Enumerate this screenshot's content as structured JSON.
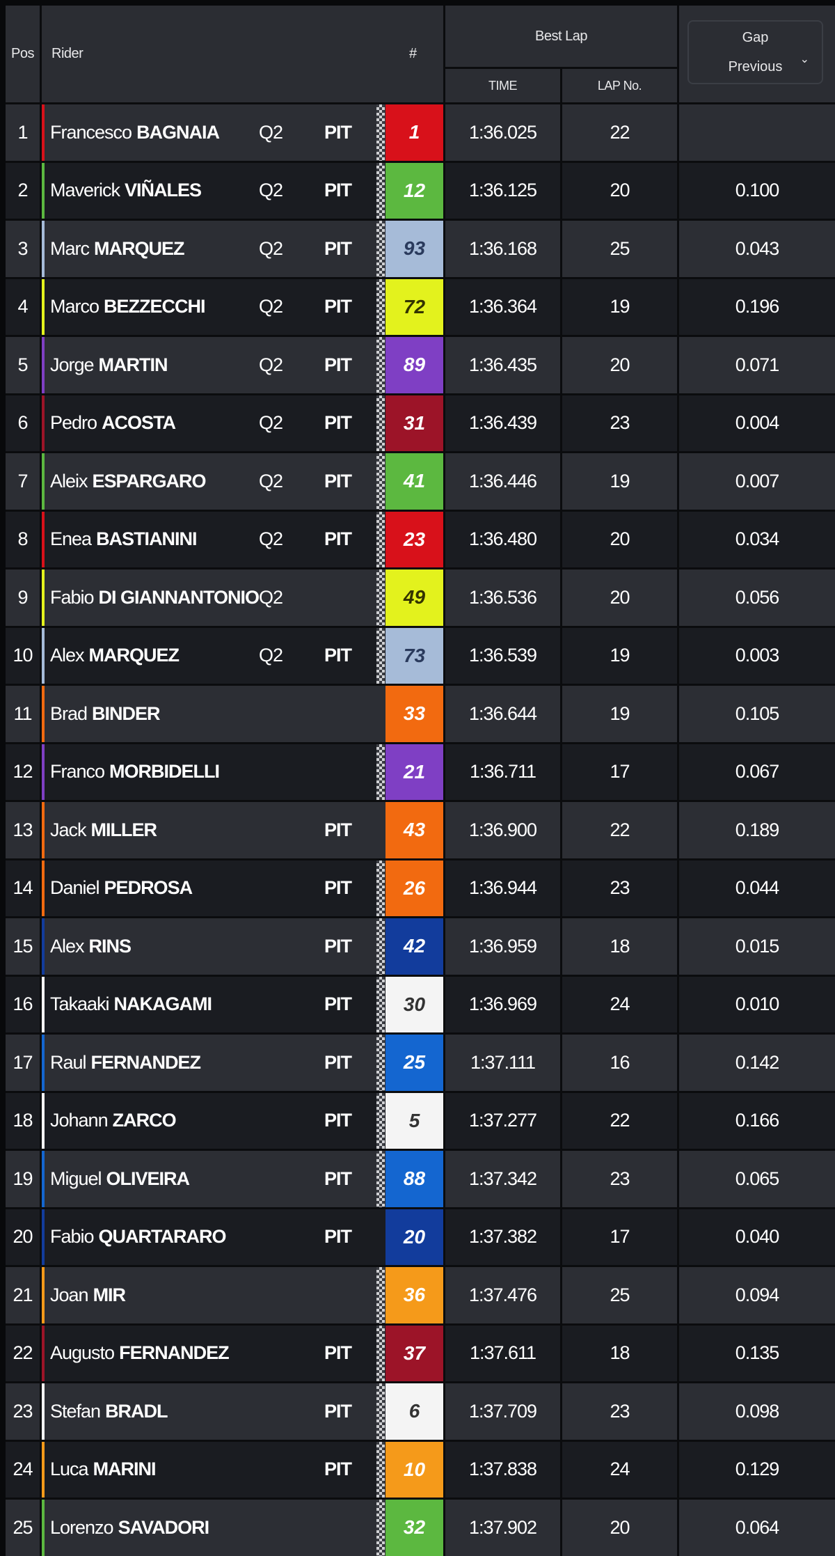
{
  "header": {
    "pos": "Pos",
    "rider": "Rider",
    "number": "#",
    "best_lap": "Best Lap",
    "time": "TIME",
    "lap_no": "LAP No.",
    "gap_selector": {
      "line1": "Gap",
      "line2": "Previous",
      "icon": "chevron-down-icon"
    }
  },
  "rows": [
    {
      "pos": "1",
      "first": "Francesco",
      "last": "BAGNAIA",
      "q": "Q2",
      "pit": "PIT",
      "checker": true,
      "num": "1",
      "color": "#d8111a",
      "text": "#ffffff",
      "time": "1:36.025",
      "lap": "22",
      "gap": ""
    },
    {
      "pos": "2",
      "first": "Maverick",
      "last": "VIÑALES",
      "q": "Q2",
      "pit": "PIT",
      "checker": true,
      "num": "12",
      "color": "#5cb840",
      "text": "#ffffff",
      "time": "1:36.125",
      "lap": "20",
      "gap": "0.100"
    },
    {
      "pos": "3",
      "first": "Marc",
      "last": "MARQUEZ",
      "q": "Q2",
      "pit": "PIT",
      "checker": true,
      "num": "93",
      "color": "#a6bbd8",
      "text": "#2a3a5c",
      "time": "1:36.168",
      "lap": "25",
      "gap": "0.043"
    },
    {
      "pos": "4",
      "first": "Marco",
      "last": "BEZZECCHI",
      "q": "Q2",
      "pit": "PIT",
      "checker": true,
      "num": "72",
      "color": "#e3f21d",
      "text": "#333300",
      "time": "1:36.364",
      "lap": "19",
      "gap": "0.196"
    },
    {
      "pos": "5",
      "first": "Jorge",
      "last": "MARTIN",
      "q": "Q2",
      "pit": "PIT",
      "checker": true,
      "num": "89",
      "color": "#7f3fc4",
      "text": "#ffffff",
      "time": "1:36.435",
      "lap": "20",
      "gap": "0.071"
    },
    {
      "pos": "6",
      "first": "Pedro",
      "last": "ACOSTA",
      "q": "Q2",
      "pit": "PIT",
      "checker": true,
      "num": "31",
      "color": "#9c1428",
      "text": "#ffffff",
      "time": "1:36.439",
      "lap": "23",
      "gap": "0.004"
    },
    {
      "pos": "7",
      "first": "Aleix",
      "last": "ESPARGARO",
      "q": "Q2",
      "pit": "PIT",
      "checker": true,
      "num": "41",
      "color": "#5cb840",
      "text": "#ffffff",
      "time": "1:36.446",
      "lap": "19",
      "gap": "0.007"
    },
    {
      "pos": "8",
      "first": "Enea",
      "last": "BASTIANINI",
      "q": "Q2",
      "pit": "PIT",
      "checker": true,
      "num": "23",
      "color": "#d8111a",
      "text": "#ffffff",
      "time": "1:36.480",
      "lap": "20",
      "gap": "0.034"
    },
    {
      "pos": "9",
      "first": "Fabio",
      "last": "DI GIANNANTONIO",
      "q": "Q2",
      "pit": "",
      "checker": true,
      "num": "49",
      "color": "#e3f21d",
      "text": "#333300",
      "time": "1:36.536",
      "lap": "20",
      "gap": "0.056"
    },
    {
      "pos": "10",
      "first": "Alex",
      "last": "MARQUEZ",
      "q": "Q2",
      "pit": "PIT",
      "checker": true,
      "num": "73",
      "color": "#a6bbd8",
      "text": "#2a3a5c",
      "time": "1:36.539",
      "lap": "19",
      "gap": "0.003"
    },
    {
      "pos": "11",
      "first": "Brad",
      "last": "BINDER",
      "q": "",
      "pit": "",
      "checker": false,
      "num": "33",
      "color": "#f26a10",
      "text": "#ffffff",
      "time": "1:36.644",
      "lap": "19",
      "gap": "0.105"
    },
    {
      "pos": "12",
      "first": "Franco",
      "last": "MORBIDELLI",
      "q": "",
      "pit": "",
      "checker": true,
      "num": "21",
      "color": "#7f3fc4",
      "text": "#ffffff",
      "time": "1:36.711",
      "lap": "17",
      "gap": "0.067"
    },
    {
      "pos": "13",
      "first": "Jack",
      "last": "MILLER",
      "q": "",
      "pit": "PIT",
      "checker": false,
      "num": "43",
      "color": "#f26a10",
      "text": "#ffffff",
      "time": "1:36.900",
      "lap": "22",
      "gap": "0.189"
    },
    {
      "pos": "14",
      "first": "Daniel",
      "last": "PEDROSA",
      "q": "",
      "pit": "PIT",
      "checker": true,
      "num": "26",
      "color": "#f26a10",
      "text": "#ffffff",
      "time": "1:36.944",
      "lap": "23",
      "gap": "0.044"
    },
    {
      "pos": "15",
      "first": "Alex",
      "last": "RINS",
      "q": "",
      "pit": "PIT",
      "checker": true,
      "num": "42",
      "color": "#123c9c",
      "text": "#ffffff",
      "time": "1:36.959",
      "lap": "18",
      "gap": "0.015"
    },
    {
      "pos": "16",
      "first": "Takaaki",
      "last": "NAKAGAMI",
      "q": "",
      "pit": "PIT",
      "checker": true,
      "num": "30",
      "color": "#f4f4f4",
      "text": "#333333",
      "time": "1:36.969",
      "lap": "24",
      "gap": "0.010"
    },
    {
      "pos": "17",
      "first": "Raul",
      "last": "FERNANDEZ",
      "q": "",
      "pit": "PIT",
      "checker": true,
      "num": "25",
      "color": "#1466d0",
      "text": "#ffffff",
      "time": "1:37.111",
      "lap": "16",
      "gap": "0.142"
    },
    {
      "pos": "18",
      "first": "Johann",
      "last": "ZARCO",
      "q": "",
      "pit": "PIT",
      "checker": true,
      "num": "5",
      "color": "#f4f4f4",
      "text": "#333333",
      "time": "1:37.277",
      "lap": "22",
      "gap": "0.166"
    },
    {
      "pos": "19",
      "first": "Miguel",
      "last": "OLIVEIRA",
      "q": "",
      "pit": "PIT",
      "checker": true,
      "num": "88",
      "color": "#1466d0",
      "text": "#ffffff",
      "time": "1:37.342",
      "lap": "23",
      "gap": "0.065"
    },
    {
      "pos": "20",
      "first": "Fabio",
      "last": "QUARTARARO",
      "q": "",
      "pit": "PIT",
      "checker": false,
      "num": "20",
      "color": "#123c9c",
      "text": "#ffffff",
      "time": "1:37.382",
      "lap": "17",
      "gap": "0.040"
    },
    {
      "pos": "21",
      "first": "Joan",
      "last": "MIR",
      "q": "",
      "pit": "",
      "checker": true,
      "num": "36",
      "color": "#f59a1a",
      "text": "#ffffff",
      "time": "1:37.476",
      "lap": "25",
      "gap": "0.094"
    },
    {
      "pos": "22",
      "first": "Augusto",
      "last": "FERNANDEZ",
      "q": "",
      "pit": "PIT",
      "checker": true,
      "num": "37",
      "color": "#9c1428",
      "text": "#ffffff",
      "time": "1:37.611",
      "lap": "18",
      "gap": "0.135"
    },
    {
      "pos": "23",
      "first": "Stefan",
      "last": "BRADL",
      "q": "",
      "pit": "PIT",
      "checker": true,
      "num": "6",
      "color": "#f4f4f4",
      "text": "#333333",
      "time": "1:37.709",
      "lap": "23",
      "gap": "0.098"
    },
    {
      "pos": "24",
      "first": "Luca",
      "last": "MARINI",
      "q": "",
      "pit": "PIT",
      "checker": true,
      "num": "10",
      "color": "#f59a1a",
      "text": "#ffffff",
      "time": "1:37.838",
      "lap": "24",
      "gap": "0.129"
    },
    {
      "pos": "25",
      "first": "Lorenzo",
      "last": "SAVADORI",
      "q": "",
      "pit": "",
      "checker": true,
      "num": "32",
      "color": "#5cb840",
      "text": "#ffffff",
      "time": "1:37.902",
      "lap": "20",
      "gap": "0.064"
    }
  ]
}
